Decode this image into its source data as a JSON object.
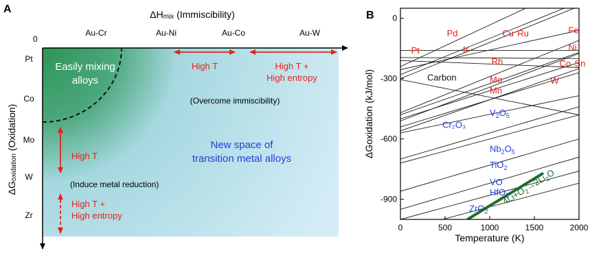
{
  "panel_a": {
    "letter": "A",
    "x_axis_title": "ΔH",
    "x_axis_title_sub": "mix",
    "x_axis_title_rest": " (Immiscibility)",
    "origin_label": "0",
    "x_categories": [
      "Au-Cr",
      "Au-Ni",
      "Au-Co",
      "Au-W"
    ],
    "y_axis_title": "ΔG",
    "y_axis_title_sub": "oxidation",
    "y_axis_title_rest": " (Oxidation)",
    "y_categories": [
      "Pt",
      "Co",
      "Mo",
      "W",
      "Zr"
    ],
    "region_label_line1": "Easily mixing",
    "region_label_line2": "alloys",
    "arrow_label_high_t_x": "High T",
    "arrow_label_entropy_x_line1": "High T +",
    "arrow_label_entropy_x_line2": "High entropy",
    "overcome_label": "(Overcome immiscibility)",
    "new_space_line1": "New space of",
    "new_space_line2": "transition metal alloys",
    "arrow_label_high_t_y": "High T",
    "reduction_label": "(Induce metal reduction)",
    "arrow_label_entropy_y_line1": "High T +",
    "arrow_label_entropy_y_line2": "High entropy",
    "colors": {
      "green": "#3e9e5f",
      "light_blue": "#cdeaf4",
      "red": "#e2231a",
      "blue": "#1f3fd9"
    }
  },
  "panel_b": {
    "letter": "B",
    "chart_data": {
      "type": "line",
      "xlabel": "Temperature (K)",
      "ylabel": "ΔGoxidation (kJ/mol)",
      "xlim": [
        0,
        2000
      ],
      "ylim": [
        -1000,
        50
      ],
      "x_ticks": [
        0,
        500,
        1000,
        1500,
        2000
      ],
      "y_ticks": [
        0,
        -300,
        -600,
        -900
      ],
      "grid": false,
      "series": [
        {
          "name": "Pd",
          "x": [
            0,
            1500
          ],
          "y": [
            -240,
            70
          ]
        },
        {
          "name": "Pt",
          "x": [
            0,
            2000
          ],
          "y": [
            -255,
            -60
          ]
        },
        {
          "name": "Cu",
          "x": [
            0,
            2000
          ],
          "y": [
            -280,
            80
          ]
        },
        {
          "name": "Ru",
          "x": [
            0,
            2000
          ],
          "y": [
            -300,
            60
          ]
        },
        {
          "name": "Ir",
          "x": [
            0,
            2000
          ],
          "y": [
            -195,
            -200
          ]
        },
        {
          "name": "Fe",
          "x": [
            0,
            2000
          ],
          "y": [
            -160,
            -160
          ]
        },
        {
          "name": "Rh",
          "x": [
            0,
            2000
          ],
          "y": [
            -210,
            -245
          ]
        },
        {
          "name": "Ni",
          "x": [
            0,
            2000
          ],
          "y": [
            -470,
            -110
          ]
        },
        {
          "name": "Co",
          "x": [
            0,
            2000
          ],
          "y": [
            -480,
            -170
          ]
        },
        {
          "name": "Sn",
          "x": [
            0,
            2000
          ],
          "y": [
            -510,
            -175
          ]
        },
        {
          "name": "Mo",
          "x": [
            0,
            2000
          ],
          "y": [
            -500,
            -220
          ]
        },
        {
          "name": "Mn",
          "x": [
            0,
            2000
          ],
          "y": [
            -560,
            -250
          ]
        },
        {
          "name": "W",
          "x": [
            0,
            2000
          ],
          "y": [
            -540,
            -270
          ]
        },
        {
          "name": "Carbon",
          "x": [
            0,
            2000
          ],
          "y": [
            -305,
            -480
          ]
        },
        {
          "name": "V2O5",
          "x": [
            0,
            2000
          ],
          "y": [
            -570,
            -385
          ]
        },
        {
          "name": "Cr2O3",
          "x": [
            0,
            2000
          ],
          "y": [
            -700,
            -440
          ]
        },
        {
          "name": "Nb2O5",
          "x": [
            0,
            2000
          ],
          "y": [
            -720,
            -480
          ]
        },
        {
          "name": "TiO2",
          "x": [
            0,
            2000
          ],
          "y": [
            -860,
            -600
          ]
        },
        {
          "name": "VO",
          "x": [
            0,
            2000
          ],
          "y": [
            -950,
            -690
          ]
        },
        {
          "name": "HfO2",
          "x": [
            0,
            2000
          ],
          "y": [
            -1000,
            -760
          ]
        },
        {
          "name": "ZrO2",
          "x": [
            300,
            2000
          ],
          "y": [
            -1020,
            -820
          ]
        },
        {
          "name": "Li2O",
          "x": [
            750,
            1600
          ],
          "y": [
            -1000,
            -770
          ]
        }
      ],
      "labels": [
        {
          "text": "Pd",
          "x": 520,
          "y": -90,
          "color": "red"
        },
        {
          "text": "Cu",
          "x": 1140,
          "y": -90,
          "color": "red"
        },
        {
          "text": "Ru",
          "x": 1310,
          "y": -90,
          "color": "red"
        },
        {
          "text": "Fe",
          "x": 1880,
          "y": -75,
          "color": "red"
        },
        {
          "text": "Pt",
          "x": 120,
          "y": -175,
          "color": "red"
        },
        {
          "text": "Ir",
          "x": 700,
          "y": -170,
          "color": "red"
        },
        {
          "text": "Ni",
          "x": 1880,
          "y": -160,
          "color": "red"
        },
        {
          "text": "Rh",
          "x": 1020,
          "y": -230,
          "color": "red"
        },
        {
          "text": "Co",
          "x": 1780,
          "y": -240,
          "color": "red"
        },
        {
          "text": "Sn",
          "x": 1950,
          "y": -240,
          "color": "red"
        },
        {
          "text": "Carbon",
          "x": 300,
          "y": -310,
          "color": "black"
        },
        {
          "text": "Mo",
          "x": 1000,
          "y": -320,
          "color": "red"
        },
        {
          "text": "W",
          "x": 1680,
          "y": -325,
          "color": "red"
        },
        {
          "text": "Mn",
          "x": 1000,
          "y": -375,
          "color": "red"
        },
        {
          "text": "V",
          "sub": "2",
          "tail": "O",
          "sub2": "5",
          "x": 1000,
          "y": -485,
          "color": "blue"
        },
        {
          "text": "Cr₂O₃",
          "x": 470,
          "y": -545,
          "color": "blue"
        },
        {
          "text": "Nb",
          "sub": "2",
          "tail": "O",
          "sub2": "5",
          "x": 1000,
          "y": -665,
          "color": "blue"
        },
        {
          "text": "TiO",
          "sub": "2",
          "x": 1000,
          "y": -745,
          "color": "blue"
        },
        {
          "text": "VO",
          "x": 1000,
          "y": -830,
          "color": "blue"
        },
        {
          "text": "HfO",
          "sub": "2",
          "x": 1000,
          "y": -880,
          "color": "blue"
        },
        {
          "text": "ZrO",
          "sub": "2",
          "x": 770,
          "y": -960,
          "color": "blue"
        }
      ],
      "reaction_label": {
        "text": "4Li+O",
        "sub": "2",
        "arrow": "→",
        "tail": "2Li",
        "sub2": "2",
        "tail2": "O",
        "color": "green"
      }
    }
  }
}
